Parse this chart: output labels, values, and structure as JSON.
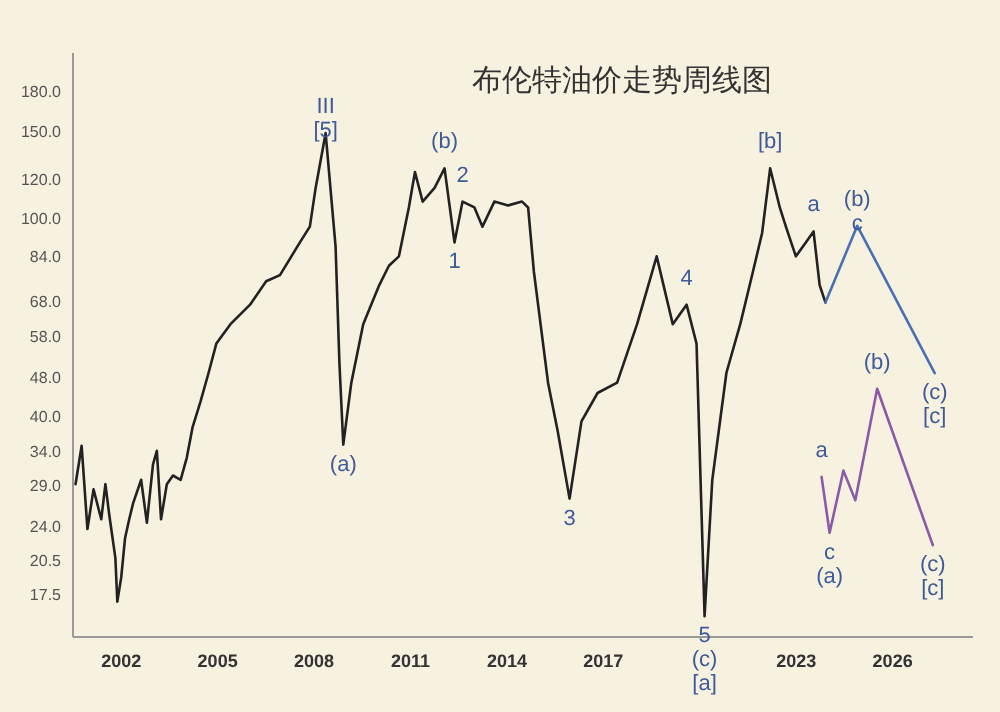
{
  "chart_data": {
    "type": "line",
    "title": "布伦特油价走势周线图",
    "log": "y",
    "grid": false,
    "legend": false,
    "xlim": [
      2000.5,
      2028.5
    ],
    "xticks": [
      2002,
      2005,
      2008,
      2011,
      2014,
      2017,
      2023,
      2026
    ],
    "ylim": [
      14.5,
      217
    ],
    "yticks": [
      {
        "value": 17.5,
        "label": "17.5"
      },
      {
        "value": 20.5,
        "label": "20.5"
      },
      {
        "value": 24,
        "label": "24.0"
      },
      {
        "value": 29,
        "label": "29.0"
      },
      {
        "value": 34,
        "label": "34.0"
      },
      {
        "value": 40,
        "label": "40.0"
      },
      {
        "value": 48,
        "label": "48.0"
      },
      {
        "value": 58,
        "label": "58.0"
      },
      {
        "value": 68,
        "label": "68.0"
      },
      {
        "value": 84,
        "label": "84.0"
      },
      {
        "value": 100,
        "label": "100.0"
      },
      {
        "value": 120,
        "label": "120.0"
      },
      {
        "value": 150,
        "label": "150.0"
      },
      {
        "value": 180,
        "label": "180.0"
      }
    ],
    "series": [
      {
        "color": "#222222",
        "x": [
          2000.61,
          2000.8,
          2000.98,
          2001.17,
          2001.41,
          2001.54,
          2001.66,
          2001.85,
          2001.91,
          2002.03,
          2002.15,
          2002.28,
          2002.4,
          2002.65,
          2002.83,
          2003.02,
          2003.14,
          2003.27,
          2003.45,
          2003.64,
          2003.88,
          2004.07,
          2004.25,
          2004.5,
          2004.75,
          2004.99,
          2005.43,
          2006.04,
          2006.54,
          2006.97,
          2007.59,
          2007.9,
          2008.08,
          2008.39,
          2008.7,
          2008.82,
          2008.94,
          2009.19,
          2009.56,
          2010.06,
          2010.36,
          2010.67,
          2010.98,
          2011.17,
          2011.41,
          2011.78,
          2012.09,
          2012.4,
          2012.65,
          2013.02,
          2013.27,
          2013.64,
          2014.07,
          2014.5,
          2014.69,
          2014.87,
          2015.31,
          2015.61,
          2015.98,
          2016.35,
          2016.85,
          2017.46,
          2018.08,
          2018.69,
          2019.19,
          2019.62,
          2019.93,
          2020.18,
          2020.42,
          2020.86,
          2021.29,
          2021.66,
          2021.97,
          2022.22,
          2022.52,
          2022.71,
          2023.02,
          2023.33,
          2023.57,
          2023.76,
          2023.94
        ],
        "values": [
          29.3,
          35,
          23.8,
          28.6,
          24.9,
          29.3,
          25.4,
          20.8,
          17,
          19,
          22.8,
          24.9,
          26.8,
          29.9,
          24.5,
          32.1,
          34.2,
          24.9,
          29.3,
          30.5,
          29.9,
          33.1,
          38.1,
          43,
          49.1,
          56.2,
          61.5,
          67.3,
          75,
          77.2,
          89.8,
          96.6,
          115.6,
          149,
          88.2,
          51.3,
          35.2,
          46.9,
          61.5,
          73.7,
          80.6,
          84.2,
          105.6,
          124.4,
          108.5,
          115.6,
          126.6,
          89.8,
          108.5,
          105.6,
          96.6,
          108.5,
          106.6,
          108.5,
          105.6,
          78.4,
          46.9,
          37.5,
          27.4,
          39.2,
          44.7,
          46.9,
          61.5,
          84.2,
          61.5,
          67.3,
          56.2,
          15.9,
          29.9,
          49.1,
          61.5,
          77.2,
          93.8,
          126.6,
          105.6,
          96.6,
          84.2,
          89.8,
          94.5,
          73.7,
          68
        ]
      },
      {
        "color": "#4a6fb5",
        "x": [
          2023.94,
          2024.93,
          2027.34
        ],
        "values": [
          68,
          97,
          49
        ]
      },
      {
        "color": "#8a5aa8",
        "x": [
          2023.82,
          2024.07,
          2024.5,
          2024.87,
          2025.55,
          2027.28
        ],
        "values": [
          30.3,
          23.4,
          31.2,
          27.2,
          45.6,
          22.1
        ]
      }
    ],
    "annotations": [
      {
        "text": "III\n[5]",
        "x": 2008.39,
        "y": 149
      },
      {
        "text": "(a)",
        "x": 2008.94,
        "y": 35.2
      },
      {
        "text": "(b)",
        "x": 2012.09,
        "y": 126.6
      },
      {
        "text": "1",
        "x": 2012.4,
        "y": 89.8
      },
      {
        "text": "2",
        "x": 2012.65,
        "y": 108.5
      },
      {
        "text": "3",
        "x": 2015.98,
        "y": 27.4
      },
      {
        "text": "4",
        "x": 2019.62,
        "y": 67.3
      },
      {
        "text": "5\n(c)\n[a]",
        "x": 2020.18,
        "y": 15.9
      },
      {
        "text": "[b]",
        "x": 2022.22,
        "y": 126.6
      },
      {
        "text": "a",
        "x": 2023.57,
        "y": 94.5
      },
      {
        "text": "(b)\nc",
        "x": 2024.93,
        "y": 97
      },
      {
        "text": "(c)\n[c]",
        "x": 2027.34,
        "y": 49
      },
      {
        "text": "a",
        "x": 2023.82,
        "y": 30.3
      },
      {
        "text": "c\n(a)",
        "x": 2024.07,
        "y": 23.4
      },
      {
        "text": "(b)",
        "x": 2025.55,
        "y": 45.6
      },
      {
        "text": "(c)\n[c]",
        "x": 2027.28,
        "y": 22.1
      }
    ]
  }
}
